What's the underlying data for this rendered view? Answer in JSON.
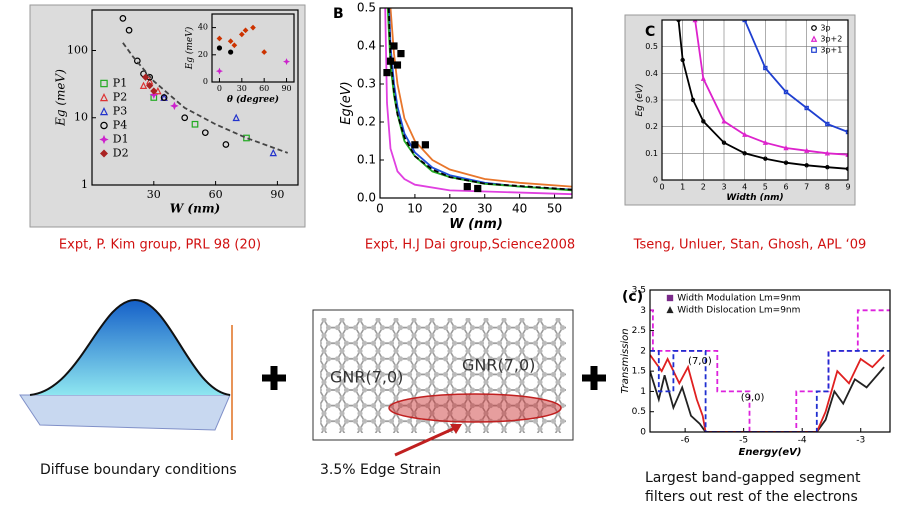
{
  "figures": [
    {
      "caption": "Expt, P. Kim group, PRL 98 (20)",
      "charts": [
        {
          "type": "line",
          "xlabel": "W (nm)",
          "ylabel": "Eg (meV)",
          "xlim": [
            0,
            100
          ],
          "ylim": [
            1,
            400
          ],
          "ylog": true,
          "bg": "#d9d9d9",
          "legend": "left",
          "xticks": [
            30,
            60,
            90
          ],
          "yticks": [
            1,
            10,
            100
          ],
          "series": [
            {
              "name": "P1",
              "color": "#22aa22",
              "style": "marker",
              "marker": "square",
              "filled": false,
              "x": [
                30,
                50,
                75
              ],
              "y": [
                20,
                8,
                5
              ]
            },
            {
              "name": "P2",
              "color": "#dd3333",
              "style": "marker",
              "marker": "triangle",
              "filled": false,
              "x": [
                25,
                28,
                32,
                35
              ],
              "y": [
                30,
                35,
                25,
                20
              ]
            },
            {
              "name": "P3",
              "color": "#2233cc",
              "style": "marker",
              "marker": "triangle",
              "filled": false,
              "x": [
                35,
                70,
                88
              ],
              "y": [
                20,
                10,
                3
              ]
            },
            {
              "name": "P4",
              "color": "#000000",
              "style": "marker",
              "marker": "circle",
              "filled": false,
              "x": [
                15,
                18,
                22,
                25,
                28,
                35,
                45,
                55,
                65
              ],
              "y": [
                300,
                200,
                70,
                45,
                40,
                20,
                10,
                6,
                4
              ]
            },
            {
              "name": "D1",
              "color": "#cc22cc",
              "style": "marker",
              "marker": "star",
              "filled": true,
              "x": [
                30,
                40
              ],
              "y": [
                22,
                15
              ]
            },
            {
              "name": "D2",
              "color": "#aa2222",
              "style": "marker",
              "marker": "diamond",
              "filled": true,
              "x": [
                26,
                28,
                30
              ],
              "y": [
                40,
                30,
                25
              ]
            },
            {
              "color": "#444444",
              "style": "line",
              "dash": true,
              "x": [
                15,
                20,
                30,
                45,
                60,
                75,
                95
              ],
              "y": [
                130,
                80,
                35,
                14,
                8,
                5,
                3
              ]
            }
          ]
        },
        {
          "type": "line",
          "xlabel": "θ (degree)",
          "ylabel": "Eg (meV)",
          "xlim": [
            -10,
            100
          ],
          "ylim": [
            0,
            50
          ],
          "bg": "#d9d9d9",
          "xticks": [
            0,
            30,
            60,
            90
          ],
          "yticks": [
            0,
            20,
            40
          ],
          "series": [
            {
              "color": "#cc3300",
              "style": "marker",
              "marker": "diamond",
              "filled": true,
              "x": [
                0,
                15,
                20,
                30,
                35,
                45,
                60
              ],
              "y": [
                32,
                30,
                27,
                35,
                38,
                40,
                22
              ]
            },
            {
              "color": "#000000",
              "style": "marker",
              "marker": "circle",
              "filled": true,
              "x": [
                0,
                15
              ],
              "y": [
                25,
                22
              ]
            },
            {
              "color": "#cc22cc",
              "style": "marker",
              "marker": "star",
              "filled": true,
              "x": [
                0,
                90
              ],
              "y": [
                8,
                15
              ]
            }
          ]
        }
      ]
    },
    {
      "caption": "Expt, H.J Dai group,Science2008",
      "title": "B",
      "charts": [
        {
          "type": "line",
          "xlabel": "W (nm)",
          "ylabel": "Eg(eV)",
          "xlim": [
            0,
            55
          ],
          "ylim": [
            0,
            0.5
          ],
          "bg": "#ffffff",
          "xticks": [
            0,
            10,
            20,
            30,
            40,
            50
          ],
          "yticks": [
            {
              "value": 0,
              "label": "0.0"
            },
            0.1,
            0.2,
            0.3,
            0.4,
            0.5
          ],
          "series": [
            {
              "color": "#e8762b",
              "style": "line",
              "x": [
                3,
                4,
                5,
                7,
                10,
                15,
                20,
                30,
                40,
                55
              ],
              "y": [
                0.5,
                0.38,
                0.3,
                0.21,
                0.15,
                0.1,
                0.075,
                0.05,
                0.04,
                0.03
              ]
            },
            {
              "color": "#1f4fd8",
              "style": "line",
              "x": [
                2.6,
                3,
                4,
                5,
                7,
                10,
                15,
                20,
                30,
                40,
                55
              ],
              "y": [
                0.5,
                0.4,
                0.3,
                0.24,
                0.17,
                0.12,
                0.08,
                0.06,
                0.04,
                0.03,
                0.022
              ]
            },
            {
              "color": "#22aa22",
              "style": "line",
              "x": [
                2.2,
                3,
                4,
                5,
                7,
                10,
                15,
                20,
                30,
                55
              ],
              "y": [
                0.5,
                0.35,
                0.27,
                0.22,
                0.15,
                0.11,
                0.07,
                0.055,
                0.037,
                0.02
              ]
            },
            {
              "color": "#000000",
              "style": "line",
              "dash": true,
              "x": [
                2.5,
                3,
                4,
                5,
                7,
                10,
                15,
                20,
                30,
                55
              ],
              "y": [
                0.5,
                0.37,
                0.28,
                0.22,
                0.16,
                0.11,
                0.075,
                0.055,
                0.038,
                0.022
              ]
            },
            {
              "color": "#e040e0",
              "style": "line",
              "x": [
                1.5,
                2,
                3,
                5,
                7,
                10,
                20,
                55
              ],
              "y": [
                0.5,
                0.25,
                0.13,
                0.07,
                0.05,
                0.035,
                0.02,
                0.01
              ]
            },
            {
              "color": "#000000",
              "style": "marker",
              "marker": "square",
              "filled": true,
              "x": [
                2,
                3,
                4,
                5,
                6,
                10,
                13,
                25,
                28
              ],
              "y": [
                0.33,
                0.36,
                0.4,
                0.35,
                0.38,
                0.14,
                0.14,
                0.03,
                0.025
              ]
            }
          ]
        }
      ]
    },
    {
      "caption": "Tseng, Unluer, Stan, Ghosh, APL ‘09",
      "title": "C",
      "charts": [
        {
          "type": "line",
          "xlabel": "Width (nm)",
          "ylabel": "Eg (eV)",
          "xlim": [
            0,
            9
          ],
          "ylim": [
            0,
            0.6
          ],
          "bg": "#ffffff",
          "grid": true,
          "legend": "top-right",
          "xticks": [
            0,
            1,
            2,
            3,
            4,
            5,
            6,
            7,
            8,
            9
          ],
          "yticks": [
            0,
            0.1,
            0.2,
            0.3,
            0.4,
            0.5
          ],
          "series": [
            {
              "name": "3p",
              "color": "#000000",
              "style": "line",
              "marker": "circle",
              "x": [
                0.8,
                1,
                1.5,
                2,
                3,
                4,
                5,
                6,
                7,
                8,
                9
              ],
              "y": [
                0.6,
                0.45,
                0.3,
                0.22,
                0.14,
                0.1,
                0.08,
                0.065,
                0.055,
                0.048,
                0.042
              ]
            },
            {
              "name": "3p+2",
              "color": "#dd22cc",
              "style": "line",
              "marker": "triangle",
              "x": [
                1.6,
                2,
                3,
                4,
                5,
                6,
                7,
                8,
                9
              ],
              "y": [
                0.6,
                0.38,
                0.22,
                0.17,
                0.14,
                0.12,
                0.11,
                0.1,
                0.095
              ]
            },
            {
              "name": "3p+1",
              "color": "#1f3fd0",
              "style": "line",
              "marker": "square",
              "x": [
                4,
                5,
                6,
                7,
                8,
                9
              ],
              "y": [
                0.6,
                0.42,
                0.33,
                0.27,
                0.21,
                0.18
              ]
            }
          ]
        }
      ]
    },
    {
      "title": "(c)",
      "charts": [
        {
          "type": "line",
          "xlabel": "Energy(eV)",
          "ylabel": "Transmission",
          "xlim": [
            -6.6,
            -2.5
          ],
          "ylim": [
            0,
            3.5
          ],
          "bg": "#ffffff",
          "legend": "top",
          "xticks": [
            -6,
            -5,
            -4,
            -3
          ],
          "yticks": [
            0,
            0.5,
            1,
            1.5,
            2,
            2.5,
            3,
            3.5
          ],
          "legend_items": [
            {
              "name": "Width Modulation Lm=9nm",
              "color": "#7a2a8a",
              "marker": "square"
            },
            {
              "name": "Width Dislocation Lm=9nm",
              "color": "#222222",
              "marker": "triangle"
            }
          ],
          "annotations": [
            {
              "text": "(7,0)",
              "x": -5.95,
              "y": 1.75
            },
            {
              "text": "(9,0)",
              "x": -5.05,
              "y": 0.85
            }
          ],
          "series": [
            {
              "color": "#dd22dd",
              "style": "line",
              "dash": true,
              "x": [
                -6.6,
                -6.55,
                -6.55,
                -5.45,
                -5.45,
                -4.9,
                -4.9,
                -4.1,
                -4.1,
                -3.55,
                -3.55,
                -3.05,
                -3.05,
                -2.5
              ],
              "y": [
                3,
                3,
                2,
                2,
                1,
                1,
                0,
                0,
                1,
                1,
                2,
                2,
                3,
                3
              ]
            },
            {
              "color": "#222222",
              "style": "line",
              "x": [
                -6.6,
                -6.45,
                -6.35,
                -6.2,
                -6.05,
                -5.9,
                -5.75,
                -5.65,
                -3.75,
                -3.6,
                -3.45,
                -3.3,
                -3.1,
                -2.9,
                -2.6
              ],
              "y": [
                1.5,
                0.8,
                1.4,
                0.6,
                1.1,
                0.4,
                0.2,
                0,
                0,
                0.3,
                1,
                0.7,
                1.3,
                1.1,
                1.6
              ]
            },
            {
              "color": "#e02020",
              "style": "line",
              "x": [
                -6.6,
                -6.4,
                -6.3,
                -6.1,
                -5.95,
                -5.8,
                -5.7,
                -5.65,
                -3.75,
                -3.6,
                -3.4,
                -3.2,
                -3,
                -2.8,
                -2.6
              ],
              "y": [
                1.9,
                1.5,
                1.8,
                1.2,
                1.6,
                0.8,
                0.4,
                0,
                0,
                0.5,
                1.5,
                1.2,
                1.8,
                1.6,
                1.9
              ]
            },
            {
              "color": "#1f2fd0",
              "style": "line",
              "dash": true,
              "x": [
                -6.6,
                -6.45,
                -6.45,
                -6.2,
                -6.2,
                -5.65,
                -5.65,
                -3.75,
                -3.75,
                -3.55,
                -3.55,
                -2.5
              ],
              "y": [
                2,
                2,
                1,
                1,
                2,
                2,
                0,
                0,
                1,
                1,
                2,
                2
              ]
            }
          ]
        }
      ]
    }
  ],
  "diagrams": {
    "left_caption": "Diffuse boundary conditions",
    "middle_labels": [
      "GNR(7,0)",
      "GNR(7,0)"
    ],
    "middle_caption": "3.5% Edge Strain",
    "right_caption": [
      "Largest band-gapped segment",
      "filters out rest of the electrons"
    ]
  }
}
